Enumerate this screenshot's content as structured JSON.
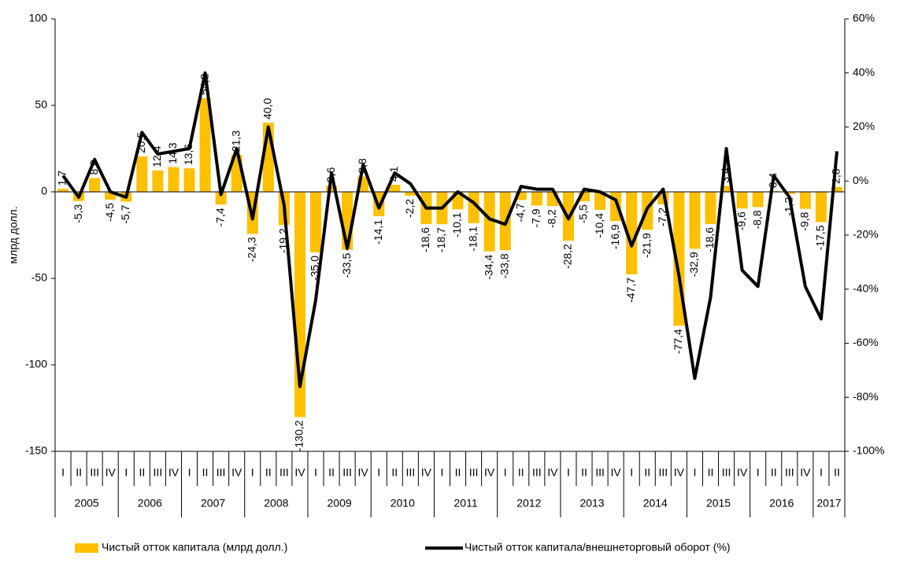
{
  "chart_data": {
    "type": "bar-line",
    "y_label": "млрд долл.",
    "categories": [
      "I",
      "II",
      "III",
      "IV",
      "I",
      "II",
      "III",
      "IV",
      "I",
      "II",
      "III",
      "IV",
      "I",
      "II",
      "III",
      "IV",
      "I",
      "II",
      "III",
      "IV",
      "I",
      "II",
      "III",
      "IV",
      "I",
      "II",
      "III",
      "IV",
      "I",
      "II",
      "III",
      "IV",
      "I",
      "II",
      "III",
      "IV",
      "I",
      "II",
      "III",
      "IV",
      "I",
      "II",
      "III",
      "IV",
      "I",
      "II",
      "III",
      "IV",
      "I",
      "II"
    ],
    "years": [
      "2005",
      "2006",
      "2007",
      "2008",
      "2009",
      "2010",
      "2011",
      "2012",
      "2013",
      "2014",
      "2015",
      "2016",
      "2017"
    ],
    "series": [
      {
        "name": "Чистый отток капитала (млрд долл.)",
        "type": "bar",
        "color": "#FFC000",
        "values": [
          1.7,
          -5.3,
          8.0,
          -4.5,
          -5.7,
          20.5,
          12.4,
          14.3,
          13.6,
          54.2,
          -7.4,
          21.3,
          -24.3,
          40.0,
          -19.2,
          -130.2,
          -35.0,
          3.6,
          -33.5,
          8.8,
          -14.1,
          4.1,
          -2.2,
          -18.6,
          -18.7,
          -10.1,
          -18.1,
          -34.4,
          -33.8,
          -4.7,
          -7.9,
          -8.2,
          -28.2,
          -5.5,
          -10.4,
          -16.9,
          -47.7,
          -21.9,
          -7.2,
          -77.4,
          -32.9,
          -18.6,
          3.4,
          -9.6,
          -8.8,
          0.4,
          -1.2,
          -9.8,
          -17.5,
          2.8
        ],
        "value_labels": [
          "1,7",
          "-5,3",
          "8,0",
          "-4,5",
          "-5,7",
          "20,5",
          "12,4",
          "14,3",
          "13,6",
          "54,2",
          "-7,4",
          "21,3",
          "-24,3",
          "40,0",
          "-19,2",
          "-130,2",
          "-35,0",
          "3,6",
          "-33,5",
          "8,8",
          "-14,1",
          "4,1",
          "-2,2",
          "-18,6",
          "-18,7",
          "-10,1",
          "-18,1",
          "-34,4",
          "-33,8",
          "-4,7",
          "-7,9",
          "-8,2",
          "-28,2",
          "-5,5",
          "-10,4",
          "-16,9",
          "-47,7",
          "-21,9",
          "-7,2",
          "-77,4",
          "-32,9",
          "-18,6",
          "3,4",
          "-9,6",
          "-8,8",
          "0,4",
          "-1,2",
          "-9,8",
          "-17,5",
          "2,8"
        ]
      },
      {
        "name": "Чистый отток капитала/внешнеторговый оборот (%)",
        "type": "line",
        "axis": "y2",
        "color": "#000000",
        "values": [
          2,
          -6,
          8,
          -4,
          -6,
          18,
          10,
          11,
          12,
          40,
          -5,
          12,
          -14,
          20,
          -9,
          -76,
          -44,
          3,
          -25,
          6,
          -10,
          3,
          -1,
          -10,
          -10,
          -4,
          -8,
          -14,
          -16,
          -2,
          -3,
          -3,
          -14,
          -3,
          -4,
          -7,
          -24,
          -10,
          -3,
          -35,
          -73,
          -43,
          12,
          -33,
          -39,
          2,
          -6,
          -39,
          -51,
          11
        ]
      }
    ],
    "ylim": [
      -150,
      100
    ],
    "yticks": [
      -150,
      -100,
      -50,
      0,
      50,
      100
    ],
    "y2lim": [
      -100,
      60
    ],
    "y2ticks": [
      {
        "value": -100,
        "label": "-100%"
      },
      {
        "value": -80,
        "label": "-80%"
      },
      {
        "value": -60,
        "label": "-60%"
      },
      {
        "value": -40,
        "label": "-40%"
      },
      {
        "value": -20,
        "label": "-20%"
      },
      {
        "value": 0,
        "label": "0%"
      },
      {
        "value": 20,
        "label": "20%"
      },
      {
        "value": 40,
        "label": "40%"
      },
      {
        "value": 60,
        "label": "60%"
      }
    ],
    "legend": "bottom"
  }
}
